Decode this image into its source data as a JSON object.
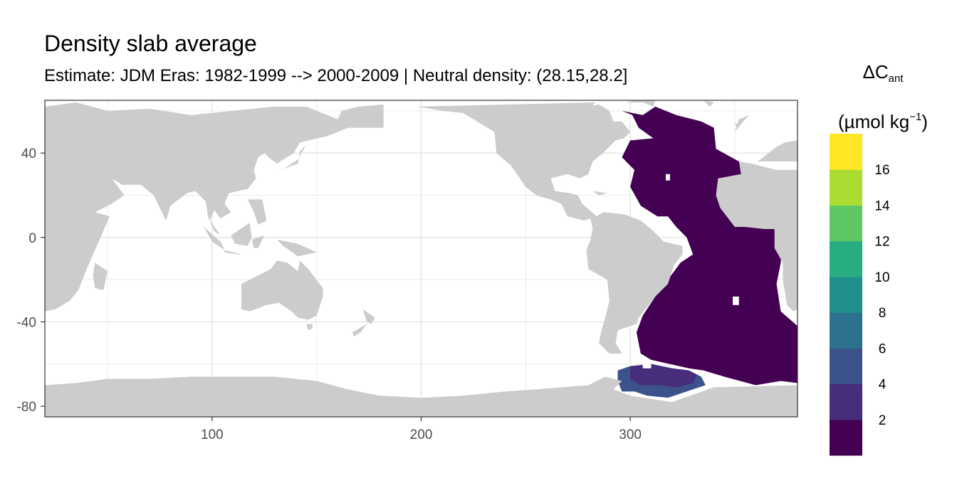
{
  "title": "Density slab average",
  "subtitle": "Estimate: JDM Eras: 1982-1999 --> 2000-2009 | Neutral density: (28.15,28.2]",
  "legend": {
    "symbol": "ΔC",
    "subscript": "ant",
    "unit_open": "(µmol kg",
    "unit_sup": "−1",
    "unit_close": ")"
  },
  "colors": {
    "land": "#CCCCCC",
    "grid": "#EBEBEB",
    "panel_border": "#333333",
    "axis_text": "#4D4D4D"
  },
  "chart_data": {
    "type": "heatmap",
    "title": "Density slab average",
    "subtitle": "Estimate: JDM Eras: 1982-1999 --> 2000-2009 | Neutral density: (28.15,28.2]",
    "xlabel": "",
    "ylabel": "",
    "xlim": [
      20,
      380
    ],
    "ylim": [
      -85,
      65
    ],
    "x_ticks": [
      100,
      200,
      300
    ],
    "y_ticks": [
      40,
      0,
      -40,
      -80
    ],
    "grid": true,
    "legend_position": "right",
    "color_bins": [
      {
        "label": "",
        "color": "#440154"
      },
      {
        "label": "2",
        "color": "#472D7B"
      },
      {
        "label": "4",
        "color": "#3B528B"
      },
      {
        "label": "6",
        "color": "#2C728E"
      },
      {
        "label": "8",
        "color": "#21908C"
      },
      {
        "label": "10",
        "color": "#27AD81"
      },
      {
        "label": "12",
        "color": "#5DC863"
      },
      {
        "label": "14",
        "color": "#AADC32"
      },
      {
        "label": "16",
        "color": "#FDE725"
      }
    ],
    "regions": [
      {
        "name": "",
        "bin": 0,
        "lonlat": [
          [
            296,
            60
          ],
          [
            306,
            58
          ],
          [
            312,
            62
          ],
          [
            322,
            58
          ],
          [
            334,
            55
          ],
          [
            340,
            52
          ],
          [
            341,
            42
          ],
          [
            352,
            36
          ],
          [
            356,
            22
          ],
          [
            362,
            15
          ],
          [
            373,
            5
          ],
          [
            372,
            -12
          ],
          [
            370,
            -22
          ],
          [
            372,
            -35
          ],
          [
            380,
            -42
          ],
          [
            380,
            -69
          ],
          [
            372,
            -68
          ],
          [
            360,
            -70
          ],
          [
            345,
            -66
          ],
          [
            335,
            -63
          ],
          [
            328,
            -62
          ],
          [
            310,
            -58
          ],
          [
            305,
            -55
          ],
          [
            303,
            -45
          ],
          [
            306,
            -37
          ],
          [
            312,
            -28
          ],
          [
            318,
            -20
          ],
          [
            324,
            -12
          ],
          [
            330,
            -8
          ],
          [
            327,
            0
          ],
          [
            322,
            5
          ],
          [
            318,
            10
          ],
          [
            313,
            10
          ],
          [
            305,
            15
          ],
          [
            300,
            24
          ],
          [
            302,
            32
          ],
          [
            296,
            38
          ],
          [
            300,
            46
          ],
          [
            311,
            47
          ],
          [
            304,
            52
          ],
          [
            301,
            58
          ]
        ]
      },
      {
        "name": "",
        "bin": 2,
        "lonlat": [
          [
            294,
            -63
          ],
          [
            300,
            -61
          ],
          [
            310,
            -60
          ],
          [
            320,
            -62
          ],
          [
            328,
            -63
          ],
          [
            334,
            -66
          ],
          [
            336,
            -70
          ],
          [
            330,
            -72
          ],
          [
            318,
            -76
          ],
          [
            308,
            -75
          ],
          [
            302,
            -73
          ],
          [
            296,
            -73
          ],
          [
            294,
            -68
          ]
        ]
      },
      {
        "name": "",
        "bin": 1,
        "lonlat": [
          [
            300,
            -61
          ],
          [
            310,
            -60
          ],
          [
            320,
            -62
          ],
          [
            328,
            -63
          ],
          [
            332,
            -65
          ],
          [
            330,
            -69
          ],
          [
            322,
            -71
          ],
          [
            314,
            -70
          ],
          [
            305,
            -70
          ],
          [
            300,
            -67
          ],
          [
            300,
            -63
          ]
        ]
      }
    ]
  },
  "land": [
    [
      [
        20,
        62
      ],
      [
        35,
        64
      ],
      [
        50,
        60
      ],
      [
        70,
        61
      ],
      [
        90,
        58
      ],
      [
        110,
        60
      ],
      [
        130,
        62
      ],
      [
        145,
        62
      ],
      [
        160,
        56
      ],
      [
        162,
        60
      ],
      [
        170,
        62
      ],
      [
        182,
        63
      ],
      [
        182,
        52
      ],
      [
        165,
        52
      ],
      [
        155,
        48
      ],
      [
        142,
        45
      ],
      [
        139,
        40
      ],
      [
        131,
        35
      ],
      [
        127,
        38
      ],
      [
        125,
        40
      ],
      [
        122,
        38
      ],
      [
        120,
        32
      ],
      [
        121,
        28
      ],
      [
        117,
        23
      ],
      [
        108,
        21
      ],
      [
        106,
        16
      ],
      [
        109,
        12
      ],
      [
        104,
        9
      ],
      [
        101,
        13
      ],
      [
        99,
        8
      ],
      [
        104,
        1
      ],
      [
        101,
        3
      ],
      [
        98,
        10
      ],
      [
        97,
        17
      ],
      [
        92,
        22
      ],
      [
        88,
        21
      ],
      [
        80,
        15
      ],
      [
        78,
        8
      ],
      [
        72,
        20
      ],
      [
        66,
        25
      ],
      [
        57,
        25
      ],
      [
        52,
        28
      ],
      [
        58,
        20
      ],
      [
        52,
        16
      ],
      [
        44,
        12
      ],
      [
        51,
        10
      ],
      [
        40,
        -15
      ],
      [
        36,
        -25
      ],
      [
        32,
        -30
      ],
      [
        25,
        -34
      ],
      [
        20,
        -35
      ]
    ],
    [
      [
        44,
        -12
      ],
      [
        50,
        -16
      ],
      [
        48,
        -25
      ],
      [
        44,
        -24
      ],
      [
        43,
        -18
      ]
    ],
    [
      [
        96,
        5
      ],
      [
        104,
        -2
      ],
      [
        106,
        -6
      ],
      [
        100,
        -2
      ]
    ],
    [
      [
        106,
        -6
      ],
      [
        114,
        -8
      ],
      [
        112,
        -8
      ],
      [
        106,
        -7
      ]
    ],
    [
      [
        109,
        1
      ],
      [
        118,
        7
      ],
      [
        119,
        0
      ],
      [
        117,
        -4
      ],
      [
        111,
        -3
      ]
    ],
    [
      [
        119,
        -1
      ],
      [
        125,
        1
      ],
      [
        122,
        -5
      ],
      [
        120,
        -5
      ]
    ],
    [
      [
        131,
        -1
      ],
      [
        141,
        -3
      ],
      [
        150,
        -7
      ],
      [
        141,
        -9
      ],
      [
        134,
        -4
      ]
    ],
    [
      [
        117,
        18
      ],
      [
        124,
        18
      ],
      [
        126,
        8
      ],
      [
        122,
        6
      ],
      [
        120,
        12
      ]
    ],
    [
      [
        130,
        31
      ],
      [
        141,
        35
      ],
      [
        142,
        41
      ],
      [
        145,
        44
      ],
      [
        141,
        37
      ],
      [
        135,
        33
      ]
    ],
    [
      [
        114,
        -22
      ],
      [
        114,
        -34
      ],
      [
        118,
        -35
      ],
      [
        126,
        -32
      ],
      [
        132,
        -31
      ],
      [
        138,
        -35
      ],
      [
        141,
        -38
      ],
      [
        146,
        -39
      ],
      [
        150,
        -37
      ],
      [
        153,
        -28
      ],
      [
        153,
        -24
      ],
      [
        146,
        -15
      ],
      [
        142,
        -11
      ],
      [
        141,
        -16
      ],
      [
        136,
        -12
      ],
      [
        131,
        -11
      ],
      [
        128,
        -15
      ],
      [
        122,
        -18
      ]
    ],
    [
      [
        145,
        -41
      ],
      [
        148,
        -41
      ],
      [
        148,
        -43
      ],
      [
        146,
        -44
      ]
    ],
    [
      [
        172,
        -34
      ],
      [
        178,
        -38
      ],
      [
        176,
        -41
      ],
      [
        174,
        -40
      ]
    ],
    [
      [
        167,
        -45
      ],
      [
        174,
        -41
      ],
      [
        171,
        -45
      ],
      [
        168,
        -47
      ]
    ],
    [
      [
        198,
        62
      ],
      [
        210,
        60
      ],
      [
        220,
        59
      ],
      [
        235,
        50
      ],
      [
        236,
        40
      ],
      [
        243,
        34
      ],
      [
        250,
        24
      ],
      [
        255,
        20
      ],
      [
        262,
        18
      ],
      [
        267,
        16
      ],
      [
        270,
        10
      ],
      [
        278,
        8
      ],
      [
        281,
        9
      ],
      [
        282,
        4
      ],
      [
        281,
        -1
      ],
      [
        279,
        -6
      ],
      [
        280,
        -15
      ],
      [
        289,
        -20
      ],
      [
        290,
        -30
      ],
      [
        288,
        -38
      ],
      [
        286,
        -45
      ],
      [
        285,
        -50
      ],
      [
        290,
        -55
      ],
      [
        296,
        -55
      ],
      [
        293,
        -50
      ],
      [
        294,
        -44
      ],
      [
        303,
        -41
      ],
      [
        304,
        -38
      ],
      [
        312,
        -28
      ],
      [
        318,
        -22
      ],
      [
        321,
        -13
      ],
      [
        325,
        -8
      ],
      [
        325,
        -4
      ],
      [
        316,
        -2
      ],
      [
        310,
        4
      ],
      [
        305,
        8
      ],
      [
        297,
        11
      ],
      [
        287,
        12
      ],
      [
        284,
        10
      ],
      [
        277,
        16
      ],
      [
        275,
        20
      ],
      [
        271,
        21
      ],
      [
        264,
        22
      ],
      [
        262,
        28
      ],
      [
        270,
        30
      ],
      [
        276,
        28
      ],
      [
        280,
        30
      ],
      [
        282,
        36
      ],
      [
        287,
        40
      ],
      [
        290,
        43
      ],
      [
        293,
        46
      ],
      [
        297,
        47
      ],
      [
        300,
        50
      ],
      [
        296,
        55
      ],
      [
        292,
        55
      ],
      [
        290,
        60
      ],
      [
        285,
        63
      ],
      [
        270,
        60
      ],
      [
        270,
        56
      ],
      [
        277,
        52
      ],
      [
        280,
        58
      ],
      [
        283,
        64
      ]
    ],
    [
      [
        282,
        22
      ],
      [
        289,
        21
      ],
      [
        285,
        20
      ]
    ],
    [
      [
        298,
        64
      ],
      [
        306,
        64
      ],
      [
        311,
        62
      ],
      [
        312,
        65
      ],
      [
        302,
        65
      ]
    ],
    [
      [
        335,
        65
      ],
      [
        340,
        64
      ],
      [
        338,
        62
      ]
    ],
    [
      [
        350,
        50
      ],
      [
        354,
        55
      ],
      [
        357,
        58
      ],
      [
        352,
        56
      ]
    ],
    [
      [
        350,
        54
      ],
      [
        352,
        54
      ],
      [
        351,
        52
      ]
    ],
    [
      [
        361,
        36
      ],
      [
        370,
        43
      ],
      [
        374,
        45
      ],
      [
        380,
        46
      ],
      [
        380,
        32
      ],
      [
        370,
        32
      ],
      [
        358,
        35
      ],
      [
        352,
        36
      ],
      [
        353,
        30
      ],
      [
        342,
        28
      ],
      [
        341,
        20
      ],
      [
        343,
        14
      ],
      [
        350,
        5
      ],
      [
        355,
        5
      ],
      [
        364,
        4
      ],
      [
        369,
        4
      ],
      [
        369,
        -5
      ],
      [
        373,
        -12
      ],
      [
        373,
        -20
      ],
      [
        375,
        -32
      ],
      [
        378,
        -35
      ],
      [
        380,
        -34
      ],
      [
        380,
        36
      ]
    ],
    [
      [
        20,
        -85
      ],
      [
        380,
        -85
      ],
      [
        380,
        -70
      ],
      [
        340,
        -71
      ],
      [
        320,
        -78
      ],
      [
        300,
        -75
      ],
      [
        292,
        -72
      ],
      [
        296,
        -68
      ],
      [
        288,
        -66
      ],
      [
        280,
        -70
      ],
      [
        255,
        -72
      ],
      [
        240,
        -73
      ],
      [
        220,
        -75
      ],
      [
        200,
        -76
      ],
      [
        180,
        -75
      ],
      [
        165,
        -72
      ],
      [
        150,
        -68
      ],
      [
        130,
        -66
      ],
      [
        110,
        -66
      ],
      [
        90,
        -66
      ],
      [
        70,
        -67
      ],
      [
        50,
        -67
      ],
      [
        35,
        -69
      ],
      [
        20,
        -70
      ]
    ]
  ],
  "ocean_holes": [
    [
      [
        317,
        30
      ],
      [
        319,
        30
      ],
      [
        319,
        27
      ],
      [
        317,
        27
      ]
    ],
    [
      [
        349,
        -28
      ],
      [
        352,
        -28
      ],
      [
        352,
        -32
      ],
      [
        349,
        -32
      ]
    ],
    [
      [
        306,
        -60
      ],
      [
        310,
        -60
      ],
      [
        310,
        -62
      ],
      [
        306,
        -62
      ]
    ]
  ]
}
